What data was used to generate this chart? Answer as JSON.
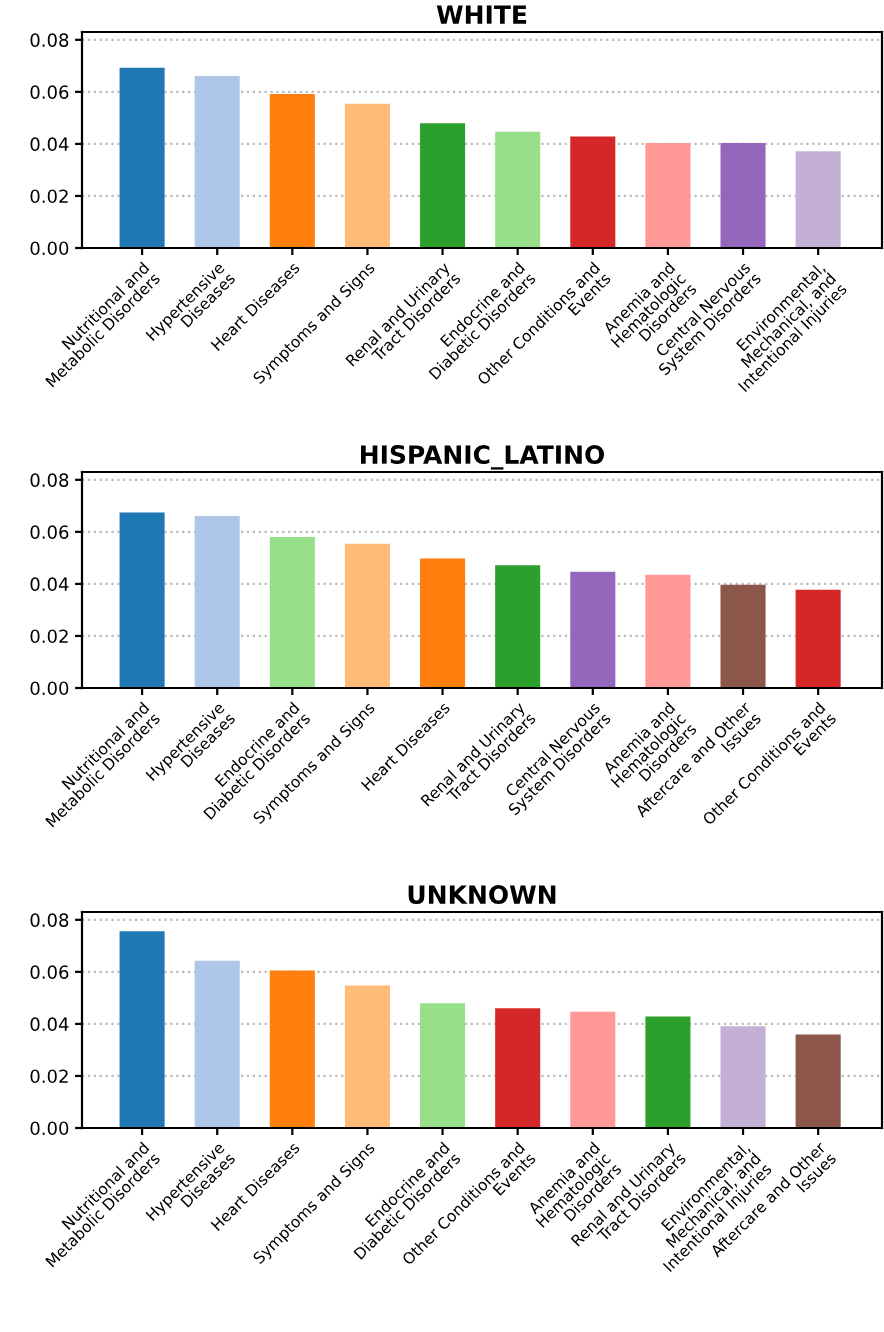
{
  "chart_data": [
    {
      "type": "bar",
      "title": "WHITE",
      "categories": [
        "Nutritional and\nMetabolic Disorders",
        "Hypertensive\nDiseases",
        "Heart Diseases",
        "Symptoms and Signs",
        "Renal and Urinary\nTract Disorders",
        "Endocrine and\nDiabetic Disorders",
        "Other Conditions and\nEvents",
        "Anemia and\nHematologic\nDisorders",
        "Central Nervous\nSystem Disorders",
        "Environmental,\nMechanical, and\nIntentional Injuries"
      ],
      "values": [
        0.0693,
        0.0661,
        0.0592,
        0.0554,
        0.0479,
        0.0447,
        0.0428,
        0.0403,
        0.0403,
        0.0372
      ],
      "colors": [
        "#1f77b4",
        "#aec7e8",
        "#ff7f0e",
        "#ffbb78",
        "#2ca02c",
        "#98df8a",
        "#d62728",
        "#ff9896",
        "#9467bd",
        "#c5b0d5"
      ],
      "ylim": [
        0,
        0.083
      ],
      "yticks": [
        {
          "value": 0,
          "label": "0.00"
        },
        {
          "value": 0.02,
          "label": "0.02"
        },
        {
          "value": 0.04,
          "label": "0.04"
        },
        {
          "value": 0.06,
          "label": "0.06"
        },
        {
          "value": 0.08,
          "label": "0.08"
        }
      ],
      "grid": "y"
    },
    {
      "type": "bar",
      "title": "HISPANIC_LATINO",
      "categories": [
        "Nutritional and\nMetabolic Disorders",
        "Hypertensive\nDiseases",
        "Endocrine and\nDiabetic Disorders",
        "Symptoms and Signs",
        "Heart Diseases",
        "Renal and Urinary\nTract Disorders",
        "Central Nervous\nSystem Disorders",
        "Anemia and\nHematologic\nDisorders",
        "Aftercare and Other\nIssues",
        "Other Conditions and\nEvents"
      ],
      "values": [
        0.0674,
        0.0661,
        0.058,
        0.0554,
        0.0498,
        0.0472,
        0.0447,
        0.0435,
        0.0397,
        0.0378
      ],
      "colors": [
        "#1f77b4",
        "#aec7e8",
        "#98df8a",
        "#ffbb78",
        "#ff7f0e",
        "#2ca02c",
        "#9467bd",
        "#ff9896",
        "#8c564b",
        "#d62728"
      ],
      "ylim": [
        0,
        0.083
      ],
      "yticks": [
        {
          "value": 0,
          "label": "0.00"
        },
        {
          "value": 0.02,
          "label": "0.02"
        },
        {
          "value": 0.04,
          "label": "0.04"
        },
        {
          "value": 0.06,
          "label": "0.06"
        },
        {
          "value": 0.08,
          "label": "0.08"
        }
      ],
      "grid": "y"
    },
    {
      "type": "bar",
      "title": "UNKNOWN",
      "categories": [
        "Nutritional and\nMetabolic Disorders",
        "Hypertensive\nDiseases",
        "Heart Diseases",
        "Symptoms and Signs",
        "Endocrine and\nDiabetic Disorders",
        "Other Conditions and\nEvents",
        "Anemia and\nHematologic\nDisorders",
        "Renal and Urinary\nTract Disorders",
        "Environmental,\nMechanical, and\nIntentional Injuries",
        "Aftercare and Other\nIssues"
      ],
      "values": [
        0.0756,
        0.0643,
        0.0605,
        0.0548,
        0.0479,
        0.046,
        0.0447,
        0.0428,
        0.0391,
        0.0359
      ],
      "colors": [
        "#1f77b4",
        "#aec7e8",
        "#ff7f0e",
        "#ffbb78",
        "#98df8a",
        "#d62728",
        "#ff9896",
        "#2ca02c",
        "#c5b0d5",
        "#8c564b"
      ],
      "ylim": [
        0,
        0.083
      ],
      "yticks": [
        {
          "value": 0,
          "label": "0.00"
        },
        {
          "value": 0.02,
          "label": "0.02"
        },
        {
          "value": 0.04,
          "label": "0.04"
        },
        {
          "value": 0.06,
          "label": "0.06"
        },
        {
          "value": 0.08,
          "label": "0.08"
        }
      ],
      "grid": "y"
    }
  ]
}
